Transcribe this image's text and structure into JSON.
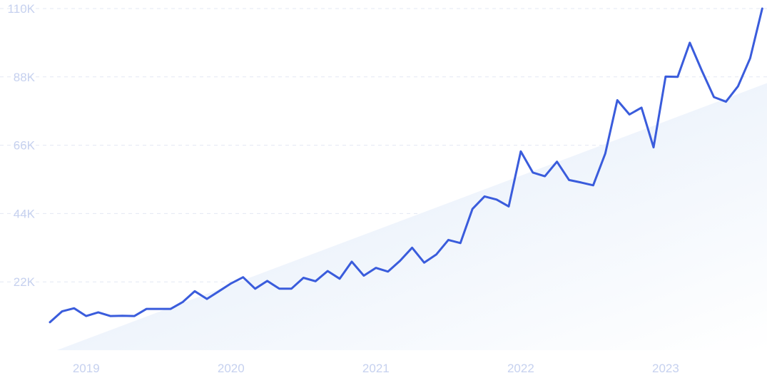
{
  "chart_data": {
    "type": "line",
    "title": "",
    "xlabel": "",
    "ylabel": "",
    "x_ticks": [
      "2019",
      "2020",
      "2021",
      "2022",
      "2023"
    ],
    "y_ticks": [
      "22K",
      "44K",
      "66K",
      "88K",
      "110K"
    ],
    "ylim": [
      0,
      110000
    ],
    "xlim": [
      "2018-10",
      "2023-09"
    ],
    "grid": true,
    "legend": "none",
    "trend_area": {
      "start": [
        "2018-12",
        0
      ],
      "end": [
        "2023-09",
        86000
      ]
    },
    "series": [
      {
        "x": [
          "2018-10",
          "2018-11",
          "2018-12",
          "2019-01",
          "2019-02",
          "2019-03",
          "2019-04",
          "2019-05",
          "2019-06",
          "2019-07",
          "2019-08",
          "2019-09",
          "2019-10",
          "2019-11",
          "2019-12",
          "2020-01",
          "2020-02",
          "2020-03",
          "2020-04",
          "2020-05",
          "2020-06",
          "2020-07",
          "2020-08",
          "2020-09",
          "2020-10",
          "2020-11",
          "2020-12",
          "2021-01",
          "2021-02",
          "2021-03",
          "2021-04",
          "2021-05",
          "2021-06",
          "2021-07",
          "2021-08",
          "2021-09",
          "2021-10",
          "2021-11",
          "2021-12",
          "2022-01",
          "2022-02",
          "2022-03",
          "2022-04",
          "2022-05",
          "2022-06",
          "2022-07",
          "2022-08",
          "2022-09",
          "2022-10",
          "2022-11",
          "2022-12",
          "2023-01",
          "2023-02",
          "2023-03",
          "2023-04",
          "2023-05",
          "2023-06",
          "2023-07",
          "2023-08",
          "2023-09"
        ],
        "values": [
          9000,
          12500,
          13500,
          11000,
          12200,
          11000,
          11100,
          11000,
          13300,
          13300,
          13300,
          15500,
          19000,
          16500,
          19000,
          21500,
          23500,
          19800,
          22300,
          19800,
          19800,
          23300,
          22200,
          25500,
          23000,
          28500,
          24000,
          26500,
          25300,
          28800,
          33000,
          28200,
          30800,
          35500,
          34500,
          45500,
          49500,
          48500,
          46300,
          64000,
          57200,
          56000,
          60700,
          54800,
          54000,
          53100,
          63300,
          80500,
          75900,
          78100,
          65300,
          88100,
          88000,
          99000,
          90000,
          81500,
          80000,
          85000,
          94000,
          110000
        ]
      }
    ]
  }
}
